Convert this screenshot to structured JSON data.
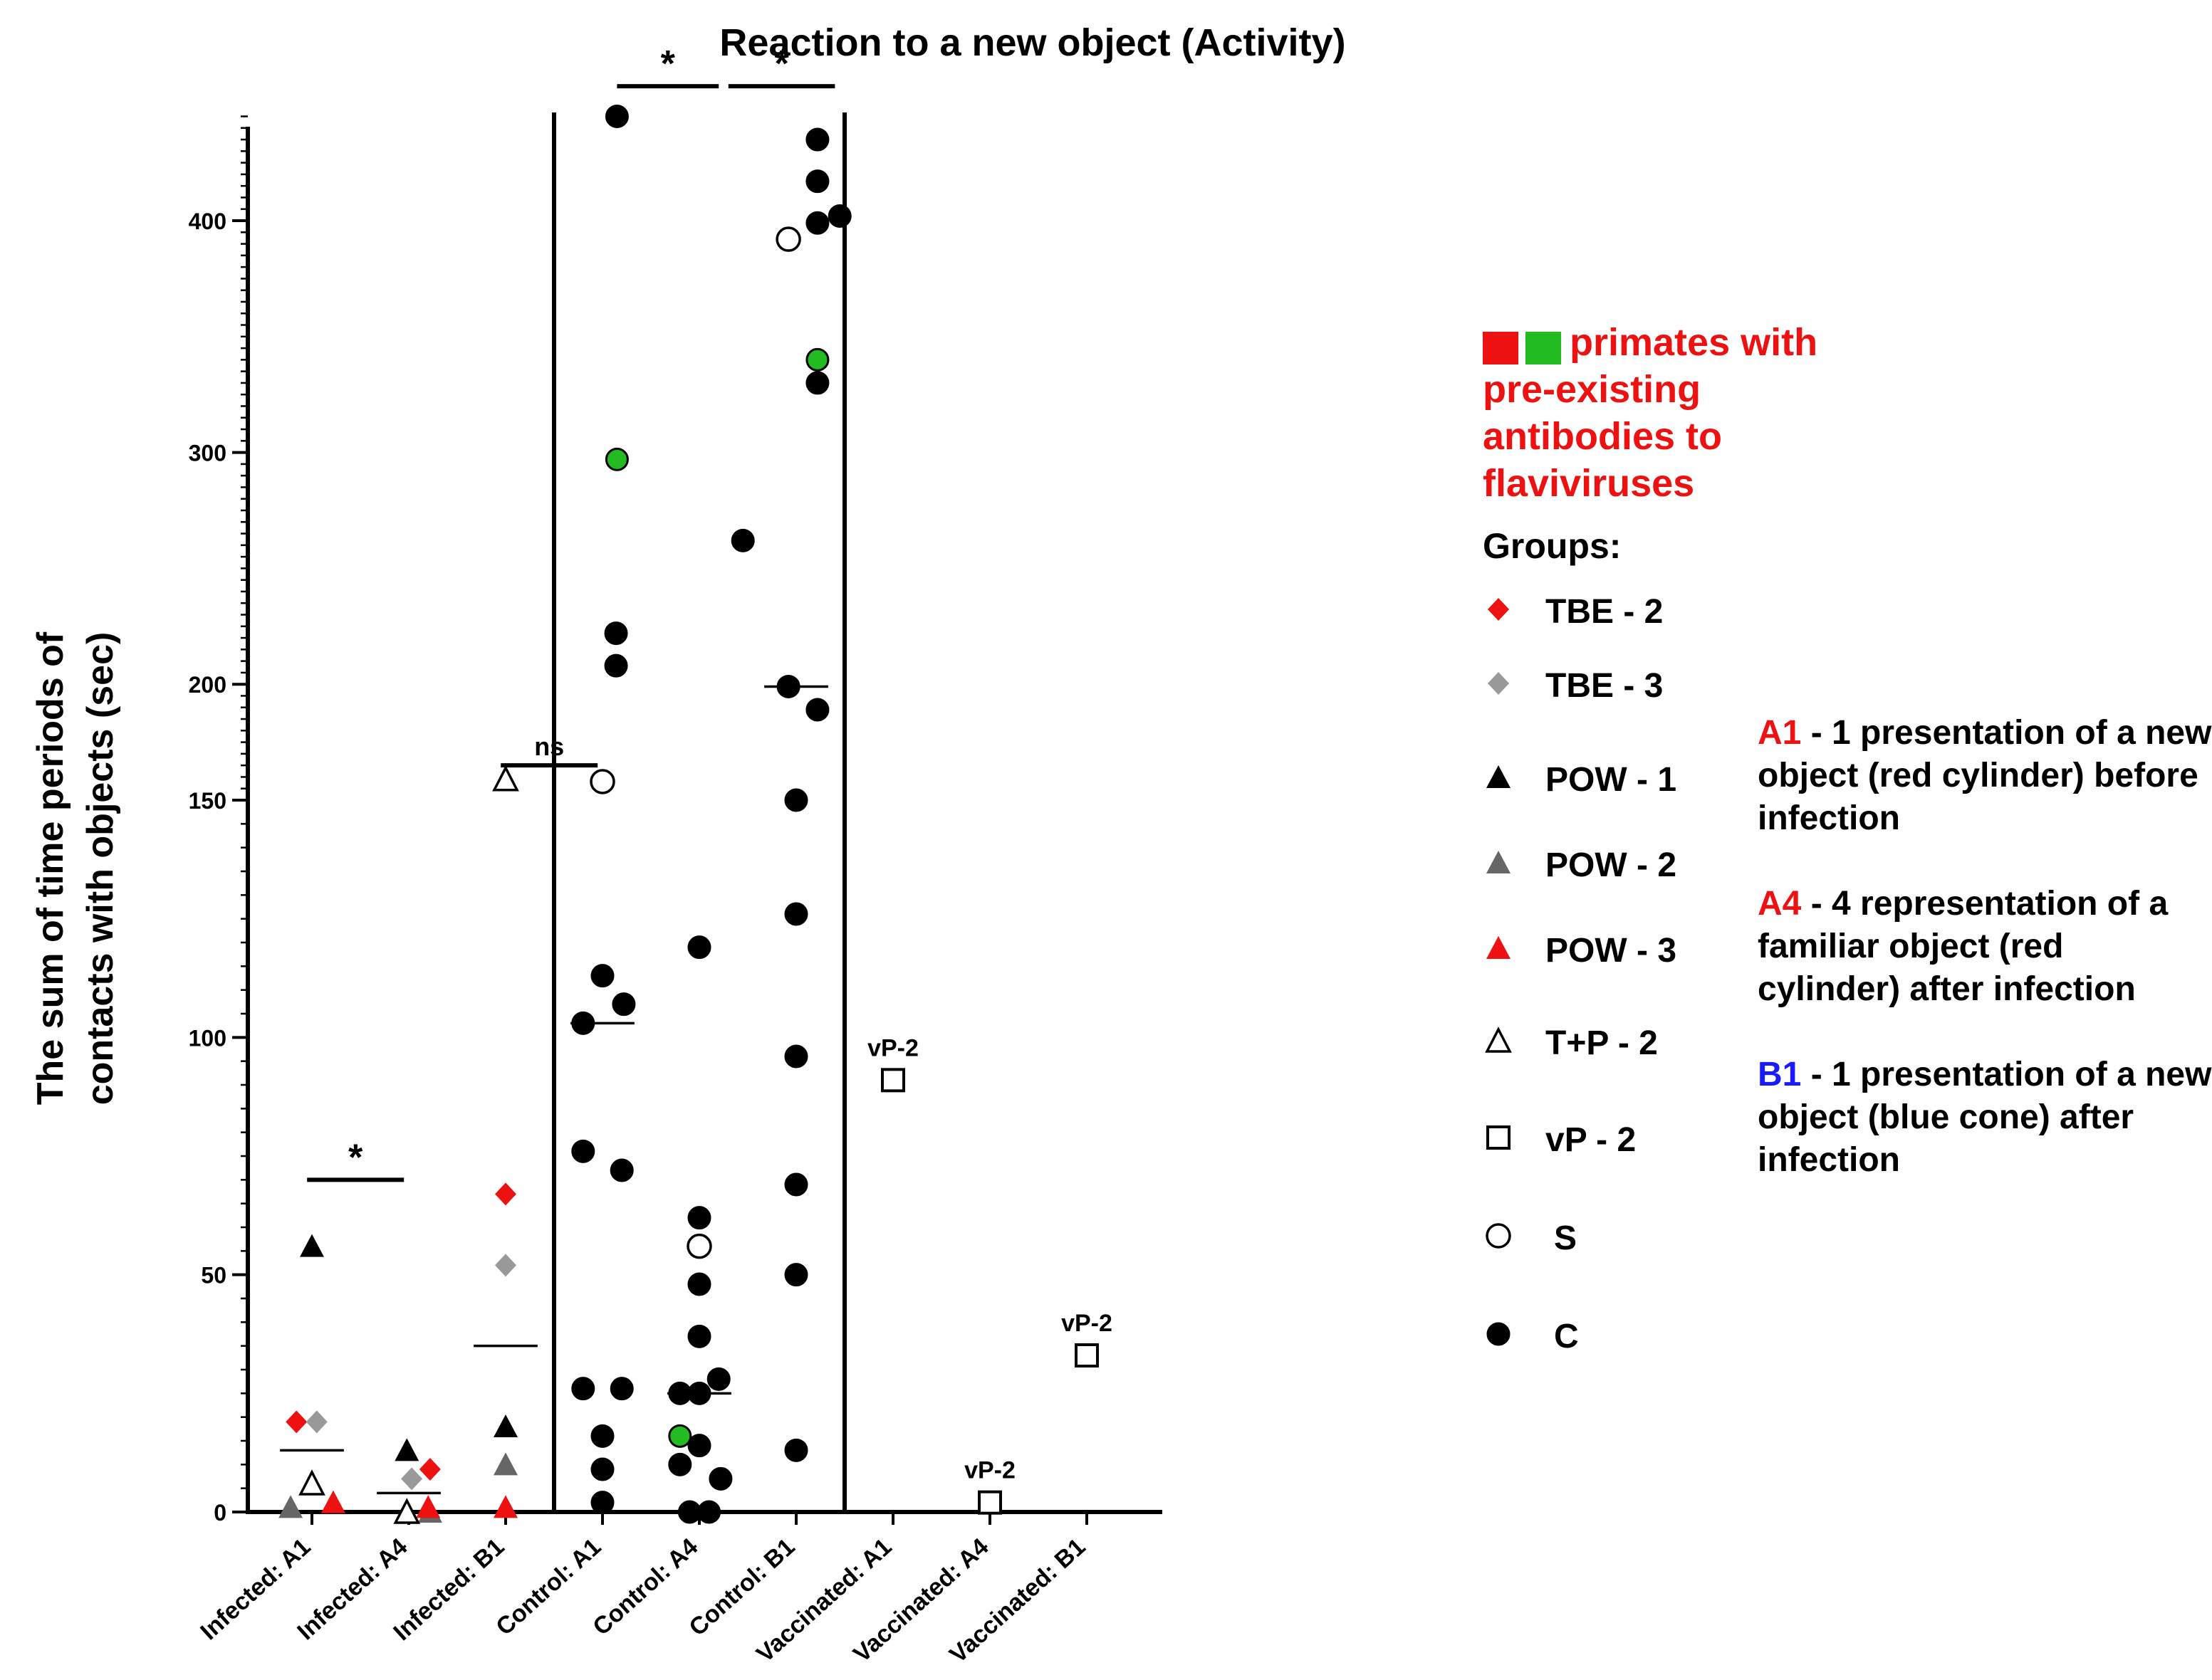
{
  "chart_data": {
    "type": "scatter",
    "title": "Reaction to a new object (Activity)",
    "ylabel_line1": "The sum of time periods of",
    "ylabel_line2": "contacts with objects (sec)",
    "y_break": 150,
    "ylim": [
      0,
      445
    ],
    "y_ticks": [
      0,
      50,
      100,
      150,
      200,
      300,
      400
    ],
    "categories": [
      "Infected: A1",
      "Infected: A4",
      "Infected: B1",
      "Control: A1",
      "Control: A4",
      "Control: B1",
      "Vaccinated: A1",
      "Vaccinated: A4",
      "Vaccinated: B1"
    ],
    "colors": {
      "red": "#ee1111",
      "gray": "#999999",
      "darkgray": "#666666",
      "green": "#22bb22",
      "black": "#000000",
      "blue": "#1a1aff"
    },
    "series": [
      {
        "name": "TBE - 2",
        "marker": "diamond",
        "color": "#ee1111",
        "points": [
          {
            "cat": 0,
            "dx": -0.16,
            "y": 19
          },
          {
            "cat": 1,
            "dx": 0.22,
            "y": 9
          },
          {
            "cat": 2,
            "dx": 0,
            "y": 67
          }
        ]
      },
      {
        "name": "TBE - 3",
        "marker": "diamond",
        "color": "#999999",
        "points": [
          {
            "cat": 0,
            "dx": 0.05,
            "y": 19
          },
          {
            "cat": 1,
            "dx": 0.03,
            "y": 7
          },
          {
            "cat": 2,
            "dx": 0,
            "y": 52
          }
        ]
      },
      {
        "name": "POW - 1",
        "marker": "triangle",
        "color": "#000000",
        "points": [
          {
            "cat": 0,
            "dx": 0,
            "y": 56
          },
          {
            "cat": 1,
            "dx": -0.02,
            "y": 13
          },
          {
            "cat": 2,
            "dx": 0,
            "y": 18
          }
        ]
      },
      {
        "name": "POW - 2",
        "marker": "triangle",
        "color": "#666666",
        "points": [
          {
            "cat": 0,
            "dx": -0.22,
            "y": 1
          },
          {
            "cat": 1,
            "dx": 0.22,
            "y": 0
          },
          {
            "cat": 2,
            "dx": 0,
            "y": 10
          }
        ]
      },
      {
        "name": "POW - 3",
        "marker": "triangle",
        "color": "#ee1111",
        "points": [
          {
            "cat": 0,
            "dx": 0.22,
            "y": 2
          },
          {
            "cat": 1,
            "dx": 0.2,
            "y": 1
          },
          {
            "cat": 2,
            "dx": 0,
            "y": 1
          }
        ]
      },
      {
        "name": "T+P - 2",
        "marker": "triangle-open",
        "color": "#000000",
        "points": [
          {
            "cat": 0,
            "dx": 0,
            "y": 6
          },
          {
            "cat": 1,
            "dx": -0.02,
            "y": 0
          },
          {
            "cat": 2,
            "dx": 0,
            "y": 159
          }
        ]
      },
      {
        "name": "vP - 2",
        "marker": "square-open",
        "color": "#000000",
        "points": [
          {
            "cat": 6,
            "dx": 0,
            "y": 91
          },
          {
            "cat": 7,
            "dx": 0,
            "y": 2
          },
          {
            "cat": 8,
            "dx": 0,
            "y": 33
          }
        ]
      },
      {
        "name": "S",
        "marker": "circle-open",
        "color": "#000000",
        "points": [
          {
            "cat": 3,
            "dx": 0,
            "y": 158
          },
          {
            "cat": 4,
            "dx": 0,
            "y": 56
          },
          {
            "cat": 5,
            "dx": -0.08,
            "y": 392
          }
        ]
      },
      {
        "name": "C",
        "marker": "circle",
        "color": "#000000",
        "points": [
          {
            "cat": 3,
            "dx": 0.15,
            "y": 445
          },
          {
            "cat": 3,
            "dx": 0.14,
            "y": 222
          },
          {
            "cat": 3,
            "dx": 0.14,
            "y": 208
          },
          {
            "cat": 3,
            "dx": 0.0,
            "y": 113
          },
          {
            "cat": 3,
            "dx": 0.22,
            "y": 107
          },
          {
            "cat": 3,
            "dx": -0.2,
            "y": 103
          },
          {
            "cat": 3,
            "dx": -0.2,
            "y": 76
          },
          {
            "cat": 3,
            "dx": 0.2,
            "y": 72
          },
          {
            "cat": 3,
            "dx": -0.2,
            "y": 26
          },
          {
            "cat": 3,
            "dx": 0.2,
            "y": 26
          },
          {
            "cat": 3,
            "dx": 0.0,
            "y": 16
          },
          {
            "cat": 3,
            "dx": 0.0,
            "y": 9
          },
          {
            "cat": 3,
            "dx": 0.0,
            "y": 2
          },
          {
            "cat": 4,
            "dx": 0.45,
            "y": 262
          },
          {
            "cat": 4,
            "dx": 0.0,
            "y": 119
          },
          {
            "cat": 4,
            "dx": 0.0,
            "y": 62
          },
          {
            "cat": 4,
            "dx": 0.0,
            "y": 48
          },
          {
            "cat": 4,
            "dx": 0.0,
            "y": 37
          },
          {
            "cat": 4,
            "dx": 0.2,
            "y": 28
          },
          {
            "cat": 4,
            "dx": -0.2,
            "y": 25
          },
          {
            "cat": 4,
            "dx": 0.0,
            "y": 25
          },
          {
            "cat": 4,
            "dx": 0.0,
            "y": 14
          },
          {
            "cat": 4,
            "dx": -0.2,
            "y": 10
          },
          {
            "cat": 4,
            "dx": 0.22,
            "y": 7
          },
          {
            "cat": 4,
            "dx": -0.1,
            "y": 0
          },
          {
            "cat": 4,
            "dx": 0.1,
            "y": 0
          },
          {
            "cat": 5,
            "dx": 0.22,
            "y": 435
          },
          {
            "cat": 5,
            "dx": 0.22,
            "y": 417
          },
          {
            "cat": 5,
            "dx": 0.22,
            "y": 399
          },
          {
            "cat": 5,
            "dx": 0.45,
            "y": 402
          },
          {
            "cat": 5,
            "dx": 0.22,
            "y": 330
          },
          {
            "cat": 5,
            "dx": -0.08,
            "y": 199
          },
          {
            "cat": 5,
            "dx": 0.22,
            "y": 189
          },
          {
            "cat": 5,
            "dx": 0.0,
            "y": 150
          },
          {
            "cat": 5,
            "dx": 0.0,
            "y": 126
          },
          {
            "cat": 5,
            "dx": 0.0,
            "y": 96
          },
          {
            "cat": 5,
            "dx": 0.0,
            "y": 69
          },
          {
            "cat": 5,
            "dx": 0.0,
            "y": 50
          },
          {
            "cat": 5,
            "dx": 0.0,
            "y": 13
          }
        ]
      },
      {
        "name": "pre-existing antibodies",
        "marker": "circle",
        "color": "#22bb22",
        "points": [
          {
            "cat": 3,
            "dx": 0.15,
            "y": 297
          },
          {
            "cat": 4,
            "dx": -0.2,
            "y": 16
          },
          {
            "cat": 5,
            "dx": 0.22,
            "y": 340
          }
        ]
      }
    ],
    "medians": [
      {
        "cat": 0,
        "y": 13
      },
      {
        "cat": 1,
        "y": 4
      },
      {
        "cat": 2,
        "y": 35
      },
      {
        "cat": 3,
        "y": 103
      },
      {
        "cat": 4,
        "y": 25
      },
      {
        "cat": 5,
        "y": 199
      }
    ],
    "point_labels": [
      {
        "cat": 6,
        "y": 91,
        "text": "vP-2"
      },
      {
        "cat": 7,
        "y": 2,
        "text": "vP-2"
      },
      {
        "cat": 8,
        "y": 33,
        "text": "vP-2"
      }
    ],
    "significance": [
      {
        "from": -0.05,
        "to": 0.95,
        "y": 70,
        "label": "*"
      },
      {
        "from": 1.95,
        "to": 2.95,
        "y": 165,
        "label": "ns"
      },
      {
        "from": 3.15,
        "to": 4.2,
        "y": 458,
        "label": "*"
      },
      {
        "from": 4.3,
        "to": 5.4,
        "y": 458,
        "label": "*"
      }
    ],
    "dividers": [
      2.5,
      5.5
    ]
  },
  "legend": {
    "note_line1": "primates with",
    "note_line2": "pre-existing",
    "note_line3": "antibodies to",
    "note_line4": "flaviviruses",
    "groups_title": "Groups:",
    "items": [
      "TBE - 2",
      "TBE - 3",
      "POW - 1",
      "POW - 2",
      "POW - 3",
      "T+P - 2",
      "vP - 2",
      "S",
      "C"
    ]
  },
  "notes": {
    "a1_key": "A1",
    "a1_text": " - 1 presentation of a new object (red cylinder) before infection",
    "a4_key": "A4",
    "a4_text": " - 4 representation of a familiar object (red cylinder) after infection",
    "b1_key": "B1",
    "b1_text": " - 1 presentation of a new object (blue cone) after infection"
  }
}
